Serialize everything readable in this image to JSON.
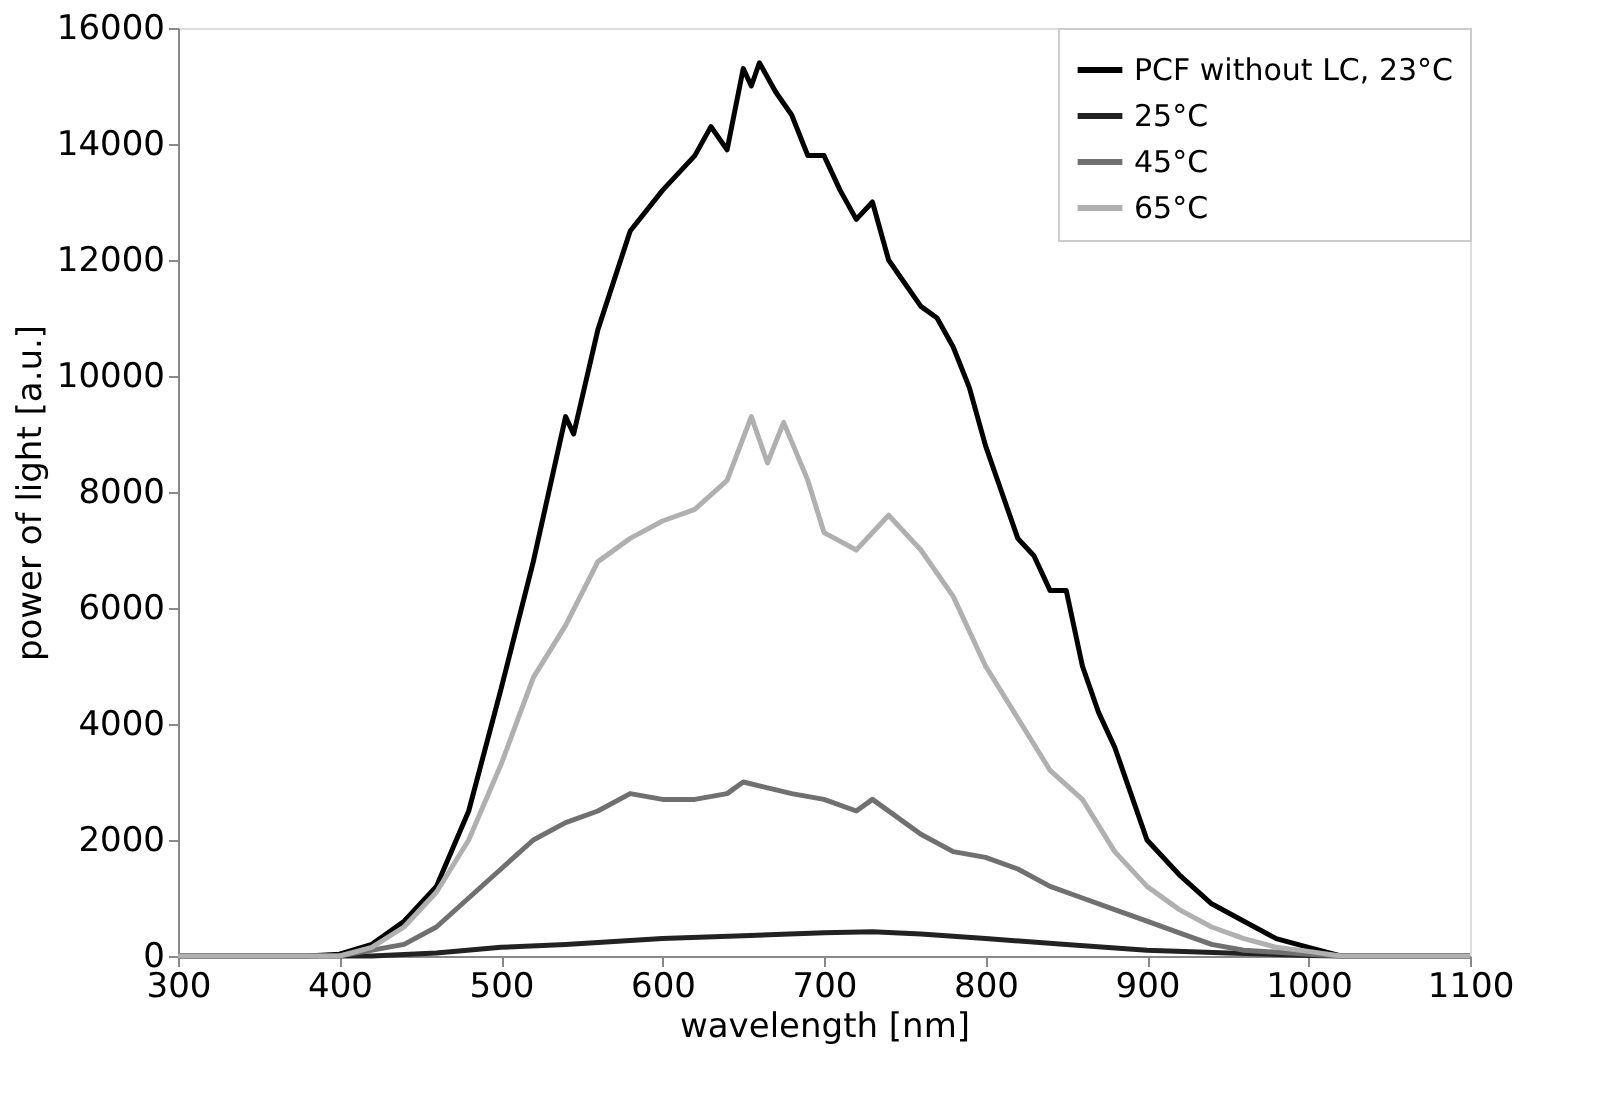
{
  "chart_data": {
    "type": "line",
    "xlabel": "wavelength [nm]",
    "ylabel": "power of light [a.u.]",
    "xlim": [
      300,
      1100
    ],
    "xticks": [
      300,
      400,
      500,
      600,
      700,
      800,
      900,
      1000,
      1100
    ],
    "ylim": [
      0,
      16000
    ],
    "yticks": [
      0,
      2000,
      4000,
      6000,
      8000,
      10000,
      12000,
      14000,
      16000
    ],
    "grid": false,
    "legend": "top right",
    "marker": "none",
    "line_style": "solid",
    "series": [
      {
        "name": "PCF without LC, 23°C",
        "color": "#000000",
        "x": [
          300,
          380,
          400,
          420,
          440,
          460,
          480,
          500,
          520,
          540,
          545,
          560,
          580,
          600,
          620,
          630,
          640,
          650,
          655,
          660,
          670,
          680,
          690,
          700,
          710,
          720,
          730,
          740,
          750,
          760,
          770,
          780,
          790,
          800,
          810,
          820,
          830,
          840,
          850,
          860,
          870,
          880,
          890,
          900,
          920,
          940,
          960,
          980,
          1000,
          1020,
          1100
        ],
        "values": [
          0,
          0,
          30,
          200,
          600,
          1200,
          2500,
          4600,
          6800,
          9300,
          9000,
          10800,
          12500,
          13200,
          13800,
          14300,
          13900,
          15300,
          15000,
          15400,
          14900,
          14500,
          13800,
          13800,
          13200,
          12700,
          13000,
          12000,
          11600,
          11200,
          11000,
          10500,
          9800,
          8800,
          8000,
          7200,
          6900,
          6300,
          6300,
          5000,
          4200,
          3600,
          2800,
          2000,
          1400,
          900,
          600,
          300,
          150,
          0,
          0
        ]
      },
      {
        "name": "25°C",
        "color": "#222222",
        "x": [
          300,
          420,
          460,
          500,
          540,
          600,
          650,
          700,
          730,
          760,
          800,
          850,
          900,
          950,
          1000,
          1020,
          1100
        ],
        "values": [
          0,
          0,
          50,
          150,
          200,
          300,
          350,
          400,
          420,
          380,
          300,
          200,
          100,
          50,
          10,
          0,
          0
        ]
      },
      {
        "name": "45°C",
        "color": "#707070",
        "x": [
          300,
          400,
          440,
          460,
          480,
          500,
          520,
          540,
          560,
          580,
          600,
          620,
          640,
          650,
          680,
          700,
          720,
          730,
          760,
          780,
          800,
          820,
          840,
          860,
          880,
          900,
          920,
          940,
          960,
          1000,
          1020,
          1100
        ],
        "values": [
          0,
          0,
          200,
          500,
          1000,
          1500,
          2000,
          2300,
          2500,
          2800,
          2700,
          2700,
          2800,
          3000,
          2800,
          2700,
          2500,
          2700,
          2100,
          1800,
          1700,
          1500,
          1200,
          1000,
          800,
          600,
          400,
          200,
          100,
          30,
          0,
          0
        ]
      },
      {
        "name": "65°C",
        "color": "#b0b0b0",
        "x": [
          300,
          400,
          420,
          440,
          460,
          480,
          500,
          520,
          540,
          560,
          580,
          600,
          620,
          640,
          655,
          665,
          675,
          690,
          700,
          720,
          740,
          760,
          780,
          800,
          820,
          840,
          860,
          880,
          900,
          920,
          940,
          960,
          980,
          1000,
          1020,
          1100
        ],
        "values": [
          0,
          0,
          150,
          500,
          1100,
          2000,
          3300,
          4800,
          5700,
          6800,
          7200,
          7500,
          7700,
          8200,
          9300,
          8500,
          9200,
          8200,
          7300,
          7000,
          7600,
          7000,
          6200,
          5000,
          4100,
          3200,
          2700,
          1800,
          1200,
          800,
          500,
          300,
          150,
          80,
          0,
          0
        ]
      }
    ]
  }
}
